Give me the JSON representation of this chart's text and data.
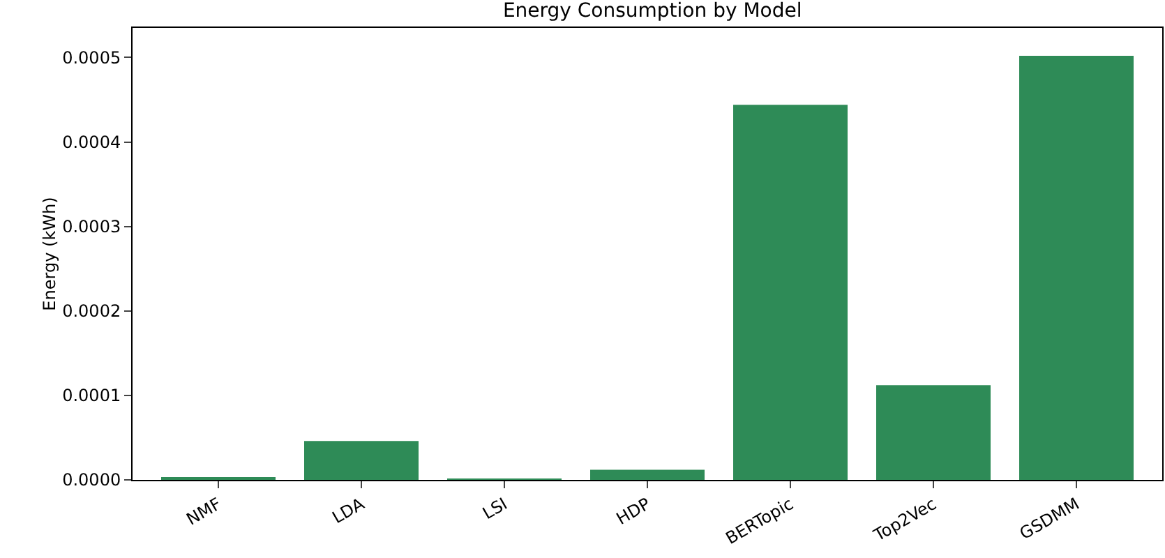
{
  "chart_data": {
    "type": "bar",
    "title": "Energy Consumption by Model",
    "ylabel": "Energy (kWh)",
    "categories": [
      "NMF",
      "LDA",
      "LSI",
      "HDP",
      "BERTopic",
      "Top2Vec",
      "GSDMM"
    ],
    "values": [
      3e-06,
      4.6e-05,
      5e-07,
      1.2e-05,
      0.000444,
      0.000112,
      0.000502
    ],
    "color": "#2e8b57",
    "ylim": [
      0,
      0.000535
    ],
    "yticks": [
      {
        "value": 0,
        "label": "0.0000"
      },
      {
        "value": 0.0001,
        "label": "0.0001"
      },
      {
        "value": 0.0002,
        "label": "0.0002"
      },
      {
        "value": 0.0003,
        "label": "0.0003"
      },
      {
        "value": 0.0004,
        "label": "0.0004"
      },
      {
        "value": 0.0005,
        "label": "0.0005"
      }
    ],
    "grid": false
  }
}
